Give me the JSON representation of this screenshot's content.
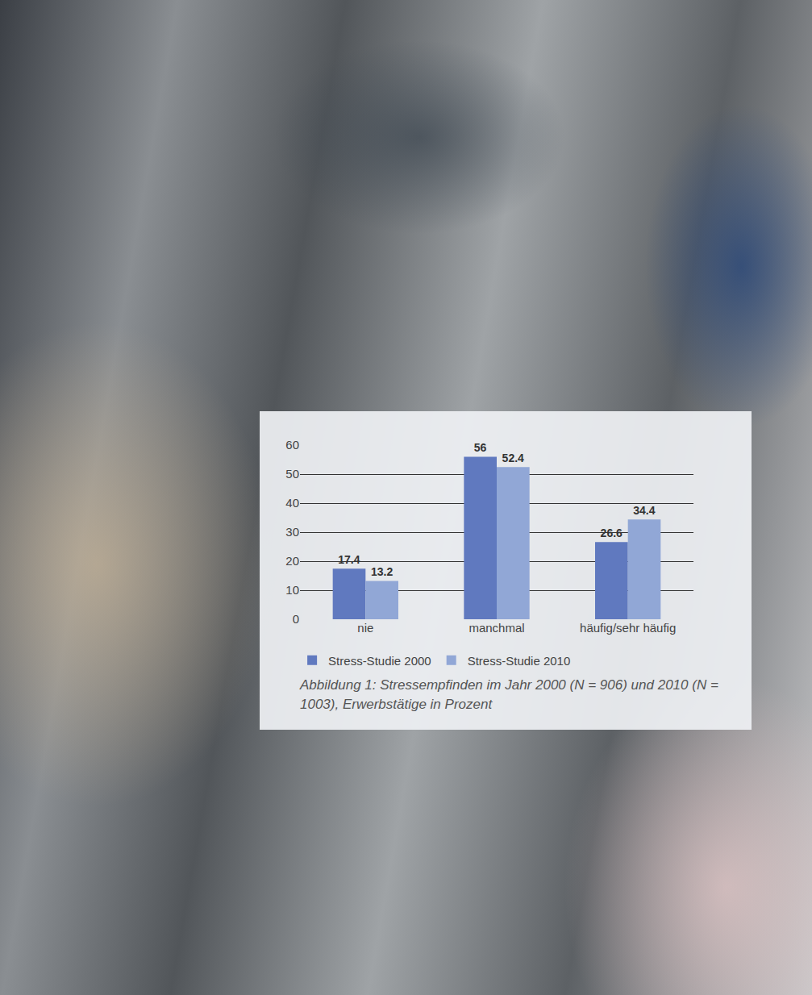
{
  "chart_data": {
    "type": "bar",
    "title": "Abbildung 1: Stressempfinden im Jahr 2000 (N = 906) und 2010 (N = 1003), Erwerbstätige in Prozent",
    "categories": [
      "nie",
      "manchmal",
      "häufig/sehr häufig"
    ],
    "series": [
      {
        "name": "Stress-Studie 2000",
        "color": "#6079bf",
        "values": [
          17.4,
          56,
          26.6
        ]
      },
      {
        "name": "Stress-Studie 2010",
        "color": "#91a7d6",
        "values": [
          13.2,
          52.4,
          34.4
        ]
      }
    ],
    "ylim": [
      0,
      60
    ],
    "yticks": [
      0,
      10,
      20,
      30,
      40,
      50,
      60
    ],
    "grid": true,
    "legend": "bottom",
    "data_labels": true
  }
}
